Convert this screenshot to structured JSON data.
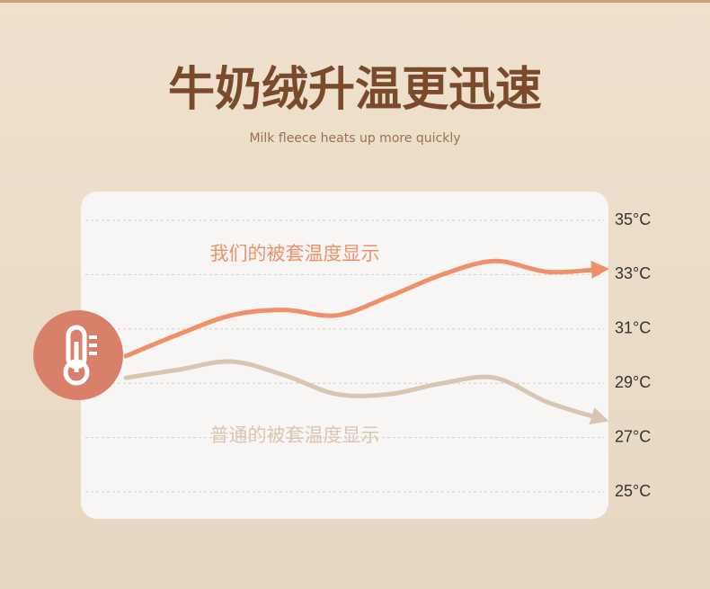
{
  "chart_data": {
    "type": "line",
    "title": "牛奶绒升温更迅速",
    "subtitle": "Milk fleece heats up more quickly",
    "categories": [
      null,
      null,
      null,
      null,
      null,
      null,
      null,
      null,
      null,
      null
    ],
    "series": [
      {
        "name": "我们的被套温度显示",
        "color": "#f0906a",
        "values": [
          30.0,
          30.8,
          31.5,
          31.7,
          31.5,
          32.2,
          33.0,
          33.5,
          33.1,
          33.2
        ]
      },
      {
        "name": "普通的被套温度显示",
        "color": "#d8c6b2",
        "values": [
          29.2,
          29.5,
          29.8,
          29.3,
          28.6,
          28.6,
          29.0,
          29.2,
          28.3,
          27.7
        ]
      }
    ],
    "ylim": [
      25,
      35
    ],
    "yticks": [
      {
        "value": 35,
        "label": "35°C"
      },
      {
        "value": 33,
        "label": "33°C"
      },
      {
        "value": 31,
        "label": "31°C"
      },
      {
        "value": 29,
        "label": "29°C"
      },
      {
        "value": 27,
        "label": "27°C"
      },
      {
        "value": 25,
        "label": "25°C"
      }
    ],
    "grid": true
  }
}
